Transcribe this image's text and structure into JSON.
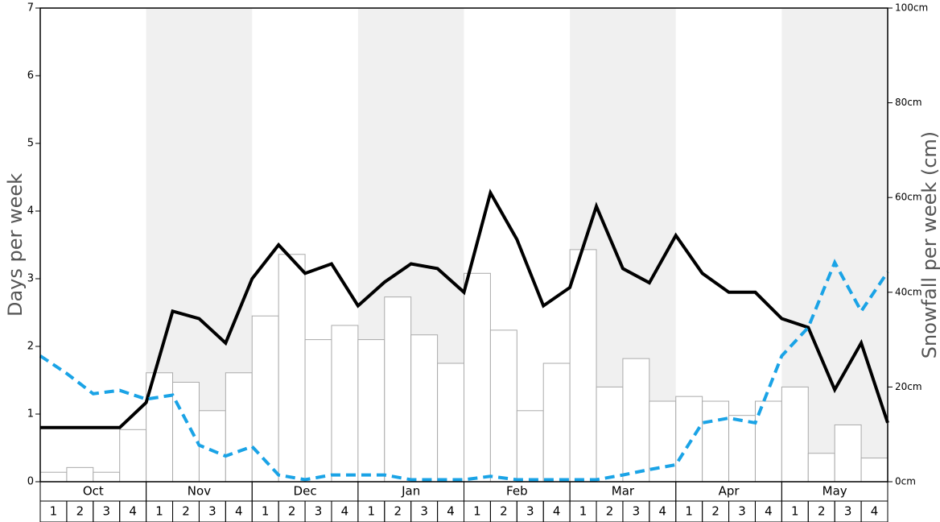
{
  "chart_data": {
    "type": "bar",
    "ylabel": "Days per week",
    "y2label": "Snowfall per week (cm)",
    "months": [
      "Oct",
      "Nov",
      "Dec",
      "Jan",
      "Feb",
      "Mar",
      "Apr",
      "May"
    ],
    "week_labels": [
      "1",
      "2",
      "3",
      "4"
    ],
    "ylim": [
      0,
      7
    ],
    "yticks": [
      0,
      1,
      2,
      3,
      4,
      5,
      6,
      7
    ],
    "y2lim": [
      0,
      100
    ],
    "y2ticks": [
      {
        "value": 0,
        "label": "0cm"
      },
      {
        "value": 20,
        "label": "20cm"
      },
      {
        "value": 40,
        "label": "40cm"
      },
      {
        "value": 60,
        "label": "60cm"
      },
      {
        "value": 80,
        "label": "80cm"
      },
      {
        "value": 100,
        "label": "100cm"
      }
    ],
    "series": [
      {
        "type": "bar",
        "axis": "y2",
        "color": "#ffffff",
        "stroke": "#aaaaaa",
        "values": [
          2,
          3,
          2,
          11,
          23,
          21,
          15,
          23,
          35,
          48,
          30,
          33,
          30,
          39,
          31,
          25,
          44,
          32,
          15,
          25,
          49,
          20,
          26,
          17,
          18,
          17,
          14,
          17,
          20,
          6,
          12,
          5
        ]
      },
      {
        "type": "line",
        "axis": "y",
        "color": "#000000",
        "values": [
          0.8,
          0.8,
          0.8,
          0.8,
          1.17,
          2.52,
          2.41,
          2.05,
          3.0,
          3.5,
          3.08,
          3.22,
          2.6,
          2.95,
          3.22,
          3.15,
          2.8,
          4.27,
          3.58,
          2.6,
          2.87,
          4.07,
          3.15,
          2.94,
          3.64,
          3.08,
          2.8,
          2.8,
          2.41,
          2.28,
          1.36,
          2.05,
          0.87
        ]
      },
      {
        "type": "line",
        "axis": "y",
        "color": "#1aa3e6",
        "dashed": true,
        "values": [
          1.86,
          1.6,
          1.3,
          1.35,
          1.22,
          1.28,
          0.54,
          0.38,
          0.52,
          0.1,
          0.03,
          0.1,
          0.1,
          0.1,
          0.03,
          0.03,
          0.03,
          0.08,
          0.03,
          0.03,
          0.03,
          0.03,
          0.1,
          0.18,
          0.25,
          0.87,
          0.94,
          0.87,
          1.86,
          2.28,
          3.24,
          2.52,
          3.1
        ]
      }
    ]
  }
}
